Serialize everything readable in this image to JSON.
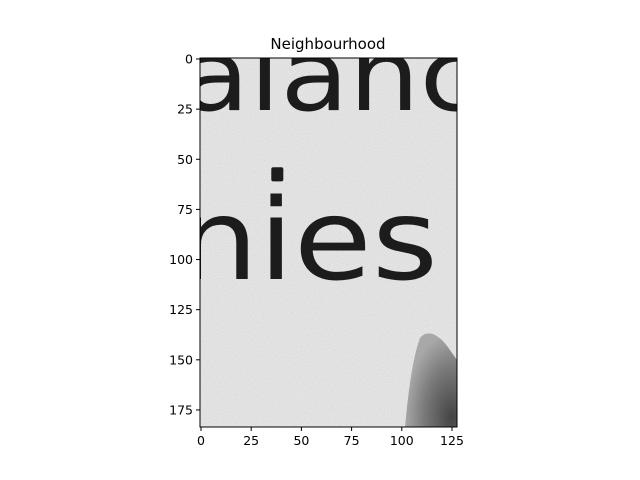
{
  "chart_data": {
    "type": "heatmap",
    "title": "Neighbourhood",
    "image_size": [
      128,
      184
    ],
    "colormap": "gray",
    "image_text": [
      "alanc",
      "nies"
    ],
    "x_ticks": [
      0,
      25,
      50,
      75,
      100,
      125
    ],
    "y_ticks": [
      0,
      25,
      50,
      75,
      100,
      125,
      150,
      175
    ],
    "xlim": [
      -0.5,
      127.5
    ],
    "ylim": [
      183.5,
      -0.5
    ],
    "grid": false,
    "colors": {
      "paper": "#ededed",
      "ink": "#1c1c1c",
      "dark_patch": "#7a7a7a"
    }
  }
}
